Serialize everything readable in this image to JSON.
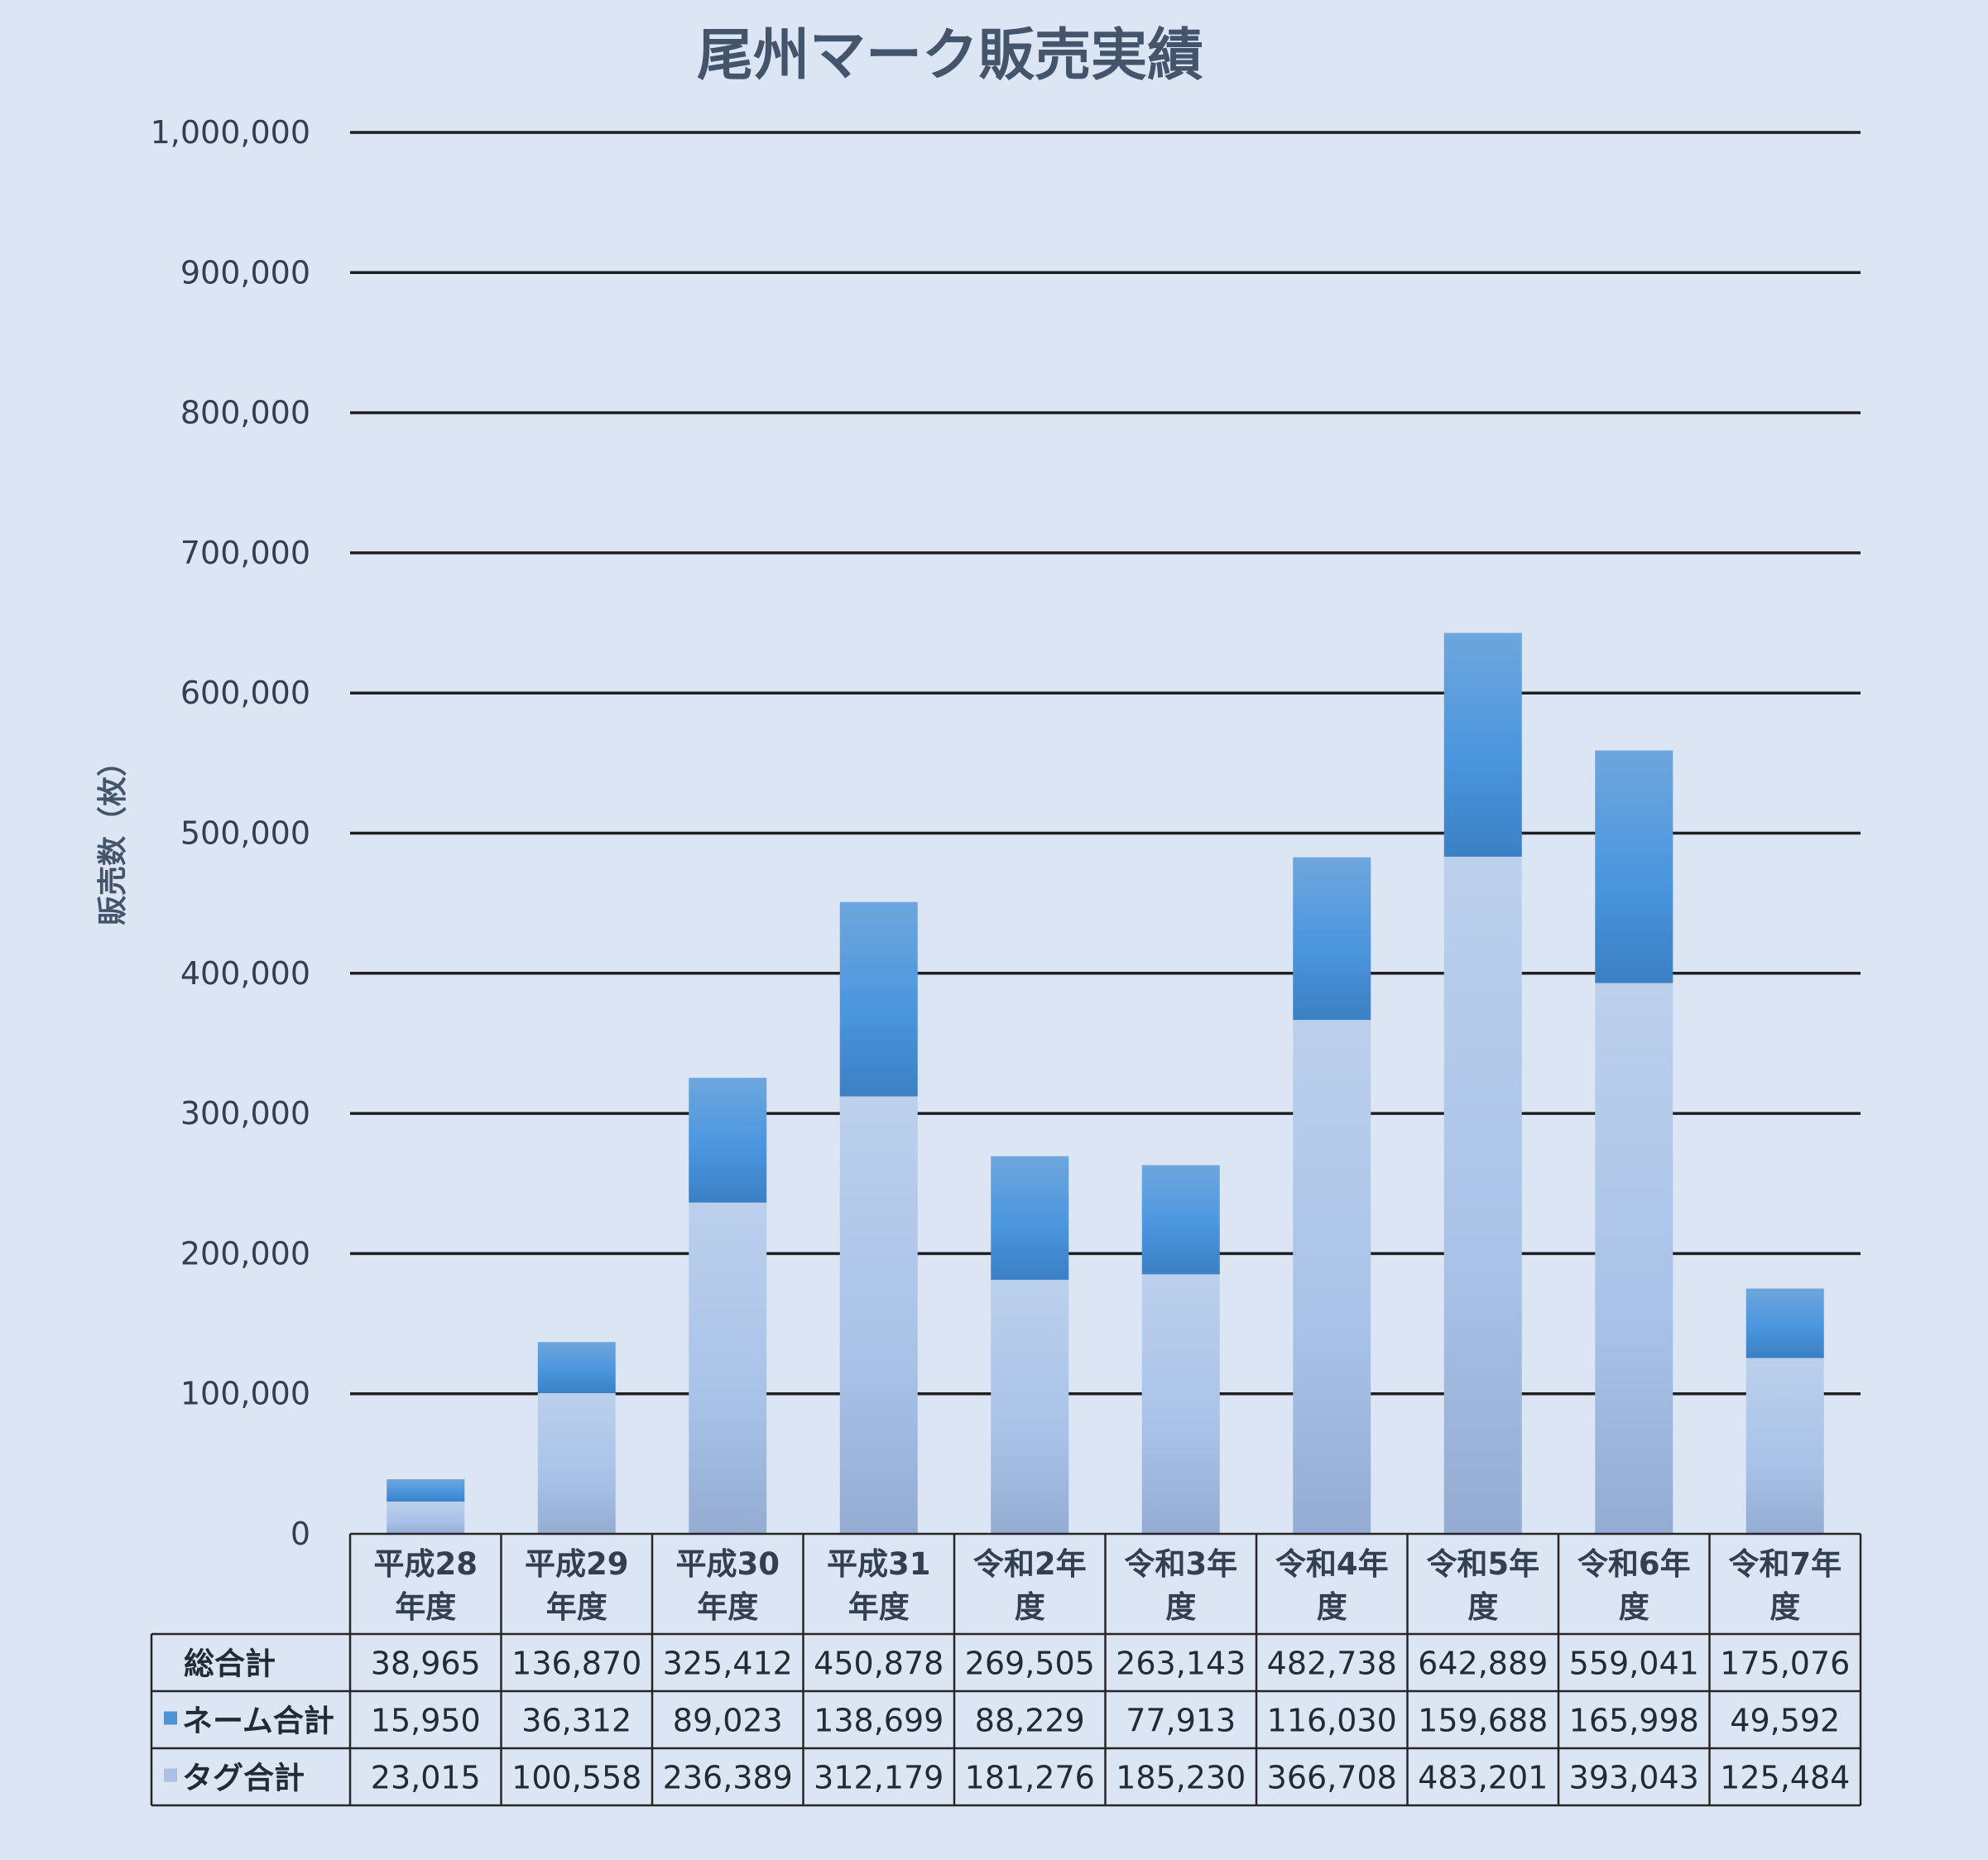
{
  "chart_data": {
    "type": "bar",
    "stacked": true,
    "title": "尾州マーク販売実績",
    "ylabel": "販売数（枚）",
    "xlabel": "",
    "ylim": [
      0,
      1000000
    ],
    "yticks": [
      "0",
      "100,000",
      "200,000",
      "300,000",
      "400,000",
      "500,000",
      "600,000",
      "700,000",
      "800,000",
      "900,000",
      "1,000,000"
    ],
    "grid": true,
    "legend": "data-table",
    "categories": [
      [
        "平成28",
        "年度"
      ],
      [
        "平成29",
        "年度"
      ],
      [
        "平成30",
        "年度"
      ],
      [
        "平成31",
        "年度"
      ],
      [
        "令和2年",
        "度"
      ],
      [
        "令和3年",
        "度"
      ],
      [
        "令和4年",
        "度"
      ],
      [
        "令和5年",
        "度"
      ],
      [
        "令和6年",
        "度"
      ],
      [
        "令和7年",
        "度"
      ]
    ],
    "series": [
      {
        "name": "タグ合計",
        "color": "#a9c1e4",
        "values": [
          23015,
          100558,
          236389,
          312179,
          181276,
          185230,
          366708,
          483201,
          393043,
          125484
        ]
      },
      {
        "name": "ネーム合計",
        "color": "#4d93d6",
        "values": [
          15950,
          36312,
          89023,
          138699,
          88229,
          77913,
          116030,
          159688,
          165998,
          49592
        ]
      }
    ],
    "table": {
      "rows": [
        {
          "label": "総合計",
          "values": [
            "38,965",
            "136,870",
            "325,412",
            "450,878",
            "269,505",
            "263,143",
            "482,738",
            "642,889",
            "559,041",
            "175,076"
          ]
        },
        {
          "label": "ネーム合計",
          "values": [
            "15,950",
            "36,312",
            "89,023",
            "138,699",
            "88,229",
            "77,913",
            "116,030",
            "159,688",
            "165,998",
            "49,592"
          ]
        },
        {
          "label": "タグ合計",
          "values": [
            "23,015",
            "100,558",
            "236,389",
            "312,179",
            "181,276",
            "185,230",
            "366,708",
            "483,201",
            "393,043",
            "125,484"
          ]
        }
      ]
    }
  }
}
